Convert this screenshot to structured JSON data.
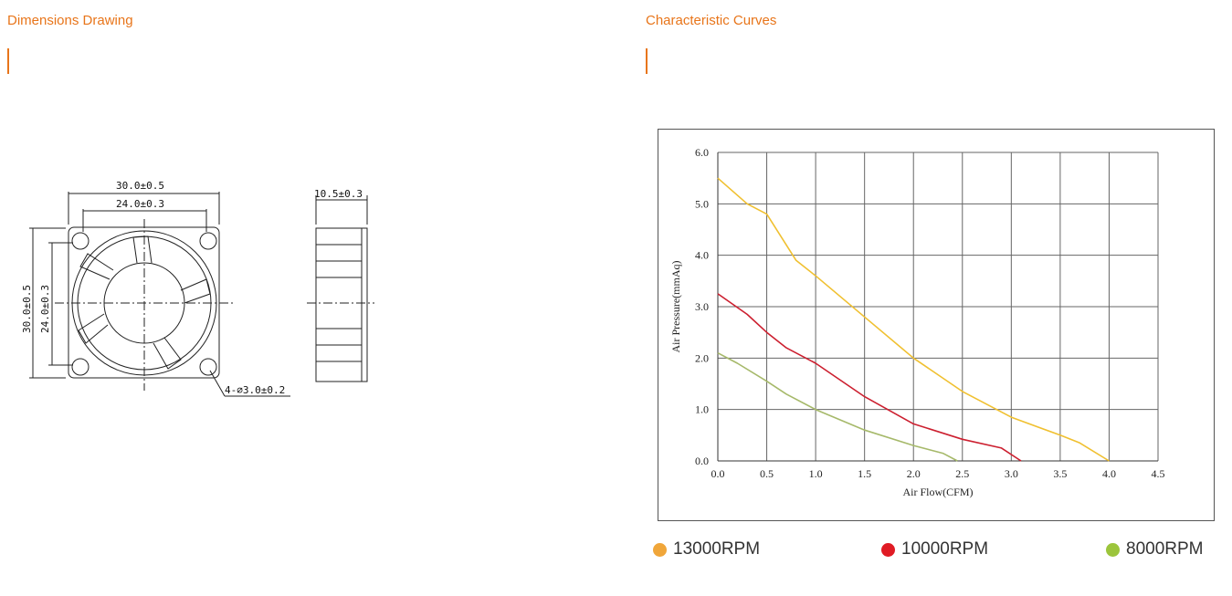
{
  "left_section": {
    "title": "Dimensions Drawing",
    "front_view": {
      "outer_width": "30.0±0.5",
      "hole_width": "24.0±0.3",
      "outer_height": "30.0±0.5",
      "hole_height": "24.0±0.3",
      "hole_note": "4-⌀3.0±0.2"
    },
    "side_view": {
      "thickness": "10.5±0.3"
    }
  },
  "right_section": {
    "title": "Characteristic Curves"
  },
  "colors": {
    "accent": "#e8751a",
    "rpm13000": "#f0c030",
    "rpm10000": "#cc1f2f",
    "rpm8000": "#a6b96a"
  },
  "legend": [
    {
      "label": "13000RPM",
      "dot_color": "#f0a63a"
    },
    {
      "label": "10000RPM",
      "dot_color": "#e01b24"
    },
    {
      "label": "8000RPM",
      "dot_color": "#9cc53c"
    }
  ],
  "chart_data": {
    "type": "line",
    "xlabel": "Air Flow(CFM)",
    "ylabel": "Air Pressure(mmAq)",
    "xlim": [
      0,
      4.5
    ],
    "ylim": [
      0,
      6
    ],
    "xticks": [
      "0.0",
      "0.5",
      "1.0",
      "1.5",
      "2.0",
      "2.5",
      "3.0",
      "3.5",
      "4.0",
      "4.5"
    ],
    "yticks": [
      "0.0",
      "1.0",
      "2.0",
      "3.0",
      "4.0",
      "5.0",
      "6.0"
    ],
    "grid": true,
    "series": [
      {
        "name": "13000RPM",
        "color": "#f0c030",
        "x": [
          0.0,
          0.3,
          0.5,
          0.8,
          1.0,
          1.5,
          2.0,
          2.5,
          3.0,
          3.5,
          3.7,
          4.0
        ],
        "y": [
          5.5,
          5.0,
          4.8,
          3.9,
          3.6,
          2.8,
          2.0,
          1.35,
          0.85,
          0.5,
          0.35,
          0.0
        ]
      },
      {
        "name": "10000RPM",
        "color": "#cc1f2f",
        "x": [
          0.0,
          0.3,
          0.5,
          0.7,
          1.0,
          1.5,
          2.0,
          2.5,
          2.9,
          3.1
        ],
        "y": [
          3.25,
          2.85,
          2.5,
          2.2,
          1.9,
          1.25,
          0.72,
          0.42,
          0.25,
          0.0
        ]
      },
      {
        "name": "8000RPM",
        "color": "#a6b96a",
        "x": [
          0.0,
          0.2,
          0.5,
          0.7,
          1.0,
          1.5,
          2.0,
          2.3,
          2.45
        ],
        "y": [
          2.1,
          1.9,
          1.55,
          1.3,
          1.0,
          0.6,
          0.3,
          0.15,
          0.0
        ]
      }
    ]
  }
}
